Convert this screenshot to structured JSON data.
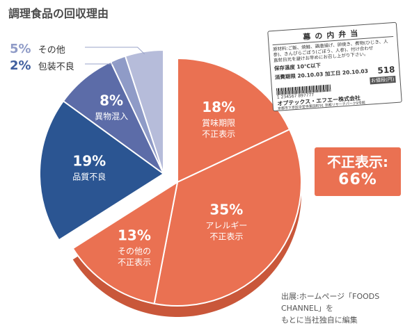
{
  "title": "調理食品の回収理由",
  "legend_outside": [
    {
      "pct": "5%",
      "label": "その他",
      "color": "#8f9bc7"
    },
    {
      "pct": "2%",
      "label": "包装不良",
      "color": "#3f5e9e"
    }
  ],
  "callout": {
    "line1": "不正表示:",
    "line2": "66%"
  },
  "source": {
    "line1": "出展:ホームページ「FOODS CHANNEL」を",
    "line2": "もとに当社独自に編集"
  },
  "food_label": {
    "title": "幕の内弁当",
    "ingredients": "原材料:ご飯、焼鮭、鶏唐揚げ、卵焼き、煮物(ひじき、人参)、きんぴらごぼう(ごぼう、人参)、付け合わせ",
    "notice": "直射日光を避けお早めにお召し上がり下さい。",
    "storage": "保存温度 10℃以下",
    "expiry": "消費期限 20.10.03",
    "processed": "加工日 20.10.03",
    "price": "518",
    "price_tag": "お値段(円)",
    "barcode_number": "1 234567 897777",
    "company": "オプテックス・エフエー株式会社",
    "address": "京都市下京区中堂寺栗田町91 京都リサーチパーク9号館"
  },
  "chart_data": {
    "type": "pie",
    "title": "調理食品の回収理由",
    "start": "12 o'clock, clockwise",
    "slices": [
      {
        "label": "賞味期限 不正表示",
        "value": 18,
        "color": "#ea7152",
        "group": "不正表示",
        "exploded": true
      },
      {
        "label": "アレルギー 不正表示",
        "value": 35,
        "color": "#ea7152",
        "group": "不正表示",
        "exploded": true
      },
      {
        "label": "その他の 不正表示",
        "value": 13,
        "color": "#ea7152",
        "group": "不正表示",
        "exploded": true
      },
      {
        "label": "品質不良",
        "value": 19,
        "color": "#2b5592",
        "group": "",
        "exploded": false
      },
      {
        "label": "異物混入",
        "value": 8,
        "color": "#5c6ca8",
        "group": "",
        "exploded": false
      },
      {
        "label": "包装不良",
        "value": 2,
        "color": "#8f9bc7",
        "group": "",
        "exploded": false
      },
      {
        "label": "その他",
        "value": 5,
        "color": "#b6bcda",
        "group": "",
        "exploded": false
      }
    ],
    "group_total": {
      "label": "不正表示",
      "value": 66
    }
  }
}
